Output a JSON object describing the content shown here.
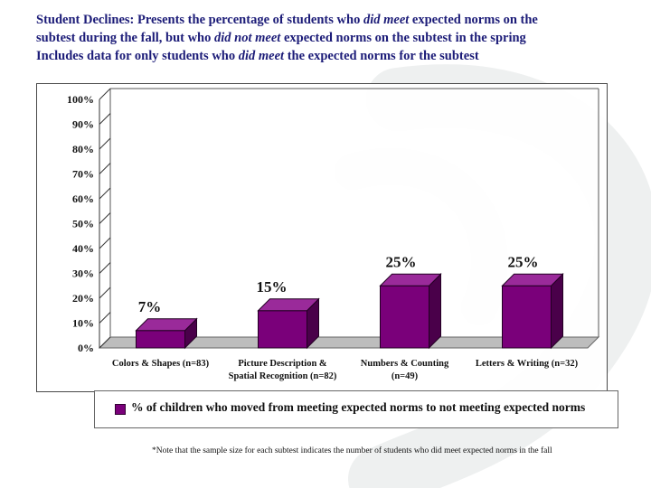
{
  "header": {
    "line1_a": "Student Declines: Presents the percentage of students who ",
    "line1_em": "did meet",
    "line1_b": " expected norms on the",
    "line2_a": "subtest during the fall, but who ",
    "line2_em": "did not meet",
    "line2_b": " expected norms on the subtest in the spring",
    "line3_a": "Includes data for only students who ",
    "line3_em": "did meet",
    "line3_b": " the expected norms for the subtest"
  },
  "chart_data": {
    "type": "bar",
    "title": "",
    "xlabel": "",
    "ylabel": "",
    "ylim": [
      0,
      100
    ],
    "yticks": [
      "0%",
      "10%",
      "20%",
      "30%",
      "40%",
      "50%",
      "60%",
      "70%",
      "80%",
      "90%",
      "100%"
    ],
    "categories": [
      [
        "Colors & Shapes (n=83)"
      ],
      [
        "Picture Description &",
        "Spatial Recognition (n=82)"
      ],
      [
        "Numbers & Counting",
        "(n=49)"
      ],
      [
        "Letters & Writing (n=32)"
      ]
    ],
    "series": [
      {
        "name": "% of children who moved from meeting expected norms to not meeting expected norms",
        "values": [
          7,
          15,
          25,
          25
        ],
        "labels": [
          "7%",
          "15%",
          "25%",
          "25%"
        ]
      }
    ],
    "legend": "bottom",
    "grid": false,
    "colors": {
      "bar_front": "#7a007a",
      "bar_side": "#4a004a",
      "bar_top": "#9a2a9a",
      "floor": "#bdbdbd"
    }
  },
  "note": "*Note that the sample size for each subtest indicates the number of students who did meet expected norms in the fall"
}
